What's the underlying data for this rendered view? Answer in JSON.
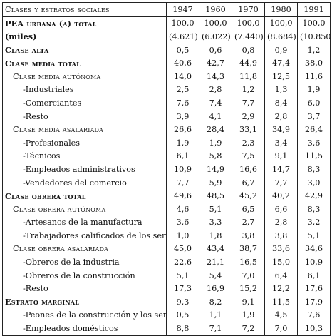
{
  "table": {
    "headers": [
      "Clases y estratos sociales",
      "1947",
      "1960",
      "1970",
      "1980",
      "1991"
    ],
    "rows": [
      {
        "label": "PEA urbana (a) total",
        "values": [
          "100,0",
          "100,0",
          "100,0",
          "100,0",
          "100,0"
        ]
      },
      {
        "label": "(miles)",
        "values": [
          "(4.621)",
          "(6.022)",
          "(7.440)",
          "(8.684)",
          "(10.850)"
        ]
      },
      {
        "label": "Clase alta",
        "values": [
          "0,5",
          "0,6",
          "0,8",
          "0,9",
          "1,2"
        ]
      },
      {
        "label": "Clase media total",
        "values": [
          "40,6",
          "42,7",
          "44,9",
          "47,4",
          "38,0"
        ]
      },
      {
        "label": "Clase media autónoma",
        "values": [
          "14,0",
          "14,3",
          "11,8",
          "12,5",
          "11,6"
        ]
      },
      {
        "label": "-Industriales",
        "values": [
          "2,5",
          "2,8",
          "1,2",
          "1,3",
          "1,9"
        ]
      },
      {
        "label": "-Comerciantes",
        "values": [
          "7,6",
          "7,4",
          "7,7",
          "8,4",
          "6,0"
        ]
      },
      {
        "label": "-Resto",
        "values": [
          "3,9",
          "4,1",
          "2,9",
          "2,8",
          "3,7"
        ]
      },
      {
        "label": "Clase media asalariada",
        "values": [
          "26,6",
          "28,4",
          "33,1",
          "34,9",
          "26,4"
        ]
      },
      {
        "label": "-Profesionales",
        "values": [
          "1,9",
          "1,9",
          "2,3",
          "3,4",
          "3,6"
        ]
      },
      {
        "label": "-Técnicos",
        "values": [
          "6,1",
          "5,8",
          "7,5",
          "9,1",
          "11,5"
        ]
      },
      {
        "label": "-Empleados administrativos",
        "values": [
          "10,9",
          "14,9",
          "16,6",
          "14,7",
          "8,3"
        ]
      },
      {
        "label": "-Vendedores del comercio",
        "values": [
          "7,7",
          "5,9",
          "6,7",
          "7,7",
          "3,0"
        ]
      },
      {
        "label": "Clase obrera total",
        "values": [
          "49,6",
          "48,5",
          "45,2",
          "40,2",
          "42,9"
        ]
      },
      {
        "label": "Clase obrera autónoma",
        "values": [
          "4,6",
          "5,1",
          "6,5",
          "6,6",
          "8,3"
        ]
      },
      {
        "label": "-Artesanos de la manufactura",
        "values": [
          "3,6",
          "3,3",
          "2,7",
          "2,8",
          "3,2"
        ]
      },
      {
        "label": "-Trabajadores calificados de los servicios",
        "values": [
          "1,0",
          "1,8",
          "3,8",
          "3,8",
          "5,1"
        ]
      },
      {
        "label": "Clase obrera asalariada",
        "values": [
          "45,0",
          "43,4",
          "38,7",
          "33,6",
          "34,6"
        ]
      },
      {
        "label": "-Obreros de la industria",
        "values": [
          "22,6",
          "21,1",
          "16,5",
          "15,0",
          "10,9"
        ]
      },
      {
        "label": "-Obreros de la construcción",
        "values": [
          "5,1",
          "5,4",
          "7,0",
          "6,4",
          "6,1"
        ]
      },
      {
        "label": "-Resto",
        "values": [
          "17,3",
          "16,9",
          "15,2",
          "12,2",
          "17,6"
        ]
      },
      {
        "label": "Estrato marginal",
        "values": [
          "9,3",
          "8,2",
          "9,1",
          "11,5",
          "17,9"
        ]
      },
      {
        "label": "-Peones de la construcción y los servicios",
        "values": [
          "0,5",
          "1,1",
          "1,9",
          "4,5",
          "7,6"
        ]
      },
      {
        "label": "-Empleados domésticos",
        "values": [
          "8,8",
          "7,1",
          "7,2",
          "7,0",
          "10,3"
        ]
      }
    ]
  }
}
